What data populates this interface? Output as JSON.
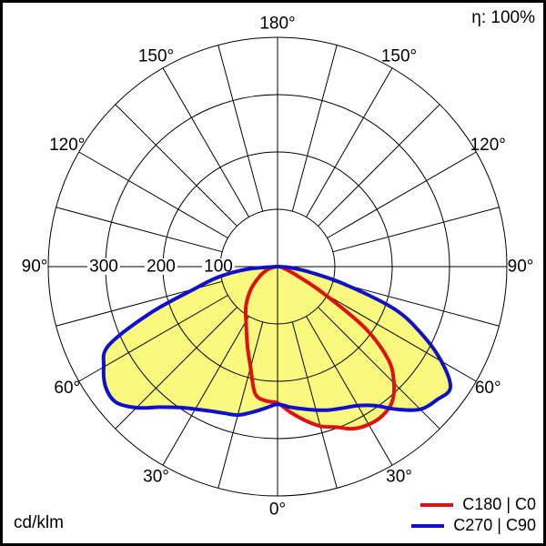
{
  "labels": {
    "efficiency": "η: 100%",
    "unit": "cd/klm"
  },
  "legend": [
    {
      "label": "C180 | C0",
      "color": "#e01010"
    },
    {
      "label": "C270 | C90",
      "color": "#1010cc"
    }
  ],
  "chart_data": {
    "type": "line",
    "polar": true,
    "title": "",
    "radial_unit": "cd/klm",
    "efficiency_label": "η: 100%",
    "angle_tick_step_deg": 30,
    "grid_spoke_step_deg": 15,
    "angle_tick_labels_deg": [
      0,
      30,
      60,
      90,
      120,
      150,
      180
    ],
    "radial_ticks": [
      100,
      200,
      300
    ],
    "radial_max": 400,
    "fill_color": "#f9f97d",
    "grid_color": "#000000",
    "gamma_deg": [
      0,
      5,
      10,
      15,
      20,
      25,
      30,
      35,
      40,
      45,
      50,
      55,
      60,
      65,
      70,
      75,
      80,
      85,
      90
    ],
    "series": [
      {
        "name": "C180 | C0",
        "color": "#e01010",
        "left_plane": "C180",
        "right_plane": "C0",
        "left_values_cd_per_klm": [
          238,
          235,
          225,
          182,
          152,
          128,
          110,
          97,
          85,
          72,
          60,
          48,
          38,
          30,
          22,
          16,
          10,
          5,
          1
        ],
        "right_values_cd_per_klm": [
          238,
          255,
          272,
          288,
          298,
          312,
          318,
          318,
          310,
          287,
          252,
          185,
          90,
          38,
          20,
          12,
          8,
          4,
          1
        ]
      },
      {
        "name": "C270 | C90",
        "color": "#1010cc",
        "left_plane": "C270",
        "right_plane": "C90",
        "left_values_cd_per_klm": [
          240,
          248,
          258,
          268,
          272,
          278,
          287,
          300,
          320,
          348,
          368,
          366,
          350,
          325,
          235,
          150,
          105,
          55,
          2
        ],
        "right_values_cd_per_klm": [
          240,
          246,
          252,
          259,
          266,
          272,
          280,
          296,
          325,
          352,
          362,
          368,
          330,
          277,
          218,
          125,
          60,
          25,
          2
        ]
      }
    ]
  }
}
